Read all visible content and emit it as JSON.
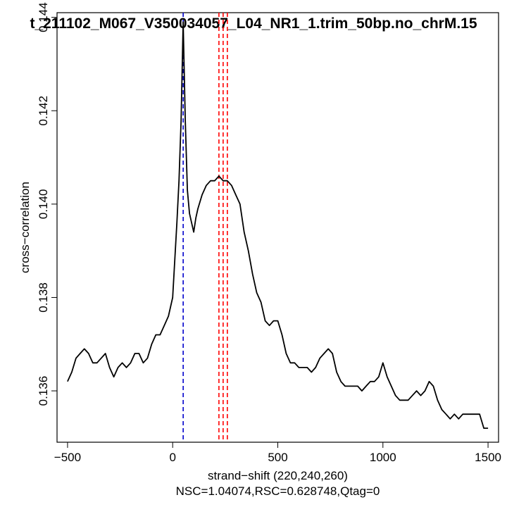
{
  "chart_data": {
    "type": "line",
    "title": "t_211102_M067_V350034057_L04_NR1_1.trim_50bp.no_chrM.15",
    "xlabel": "strand−shift (220,240,260)",
    "subtitle": "NSC=1.04074,RSC=0.628748,Qtag=0",
    "ylabel": "cross−correlation",
    "xlim": [
      -550,
      1550
    ],
    "ylim": [
      0.1349,
      0.1441
    ],
    "xticks": [
      -500,
      0,
      500,
      1000,
      1500
    ],
    "xtick_labels": [
      "−500",
      "0",
      "500",
      "1000",
      "1500"
    ],
    "yticks": [
      0.136,
      0.138,
      0.14,
      0.142,
      0.144
    ],
    "ytick_labels": [
      "0.136",
      "0.138",
      "0.140",
      "0.142",
      "0.144"
    ],
    "grid": false,
    "series": [
      {
        "color": "#000000",
        "x": [
          -500,
          -480,
          -460,
          -440,
          -420,
          -400,
          -380,
          -360,
          -340,
          -320,
          -300,
          -280,
          -260,
          -240,
          -220,
          -200,
          -180,
          -160,
          -140,
          -120,
          -100,
          -80,
          -60,
          -40,
          -20,
          0,
          10,
          20,
          30,
          40,
          50,
          60,
          70,
          80,
          90,
          100,
          110,
          120,
          140,
          160,
          180,
          200,
          220,
          240,
          260,
          280,
          300,
          320,
          340,
          360,
          380,
          400,
          420,
          440,
          460,
          480,
          500,
          520,
          540,
          560,
          580,
          600,
          620,
          640,
          660,
          680,
          700,
          720,
          740,
          760,
          780,
          800,
          820,
          840,
          860,
          880,
          900,
          920,
          940,
          960,
          980,
          1000,
          1020,
          1040,
          1060,
          1080,
          1100,
          1120,
          1140,
          1160,
          1180,
          1200,
          1220,
          1240,
          1260,
          1280,
          1300,
          1320,
          1340,
          1360,
          1380,
          1400,
          1420,
          1440,
          1460,
          1480,
          1500
        ],
        "y": [
          0.1362,
          0.1364,
          0.1367,
          0.1368,
          0.1369,
          0.1368,
          0.1366,
          0.1366,
          0.1367,
          0.1368,
          0.1365,
          0.1363,
          0.1365,
          0.1366,
          0.1365,
          0.1366,
          0.1368,
          0.1368,
          0.1366,
          0.1367,
          0.137,
          0.1372,
          0.1372,
          0.1374,
          0.1376,
          0.138,
          0.1388,
          0.1396,
          0.1405,
          0.1418,
          0.1439,
          0.1418,
          0.1403,
          0.1398,
          0.1396,
          0.1394,
          0.1397,
          0.1399,
          0.1402,
          0.1404,
          0.1405,
          0.1405,
          0.1406,
          0.1405,
          0.1405,
          0.1404,
          0.1402,
          0.14,
          0.1394,
          0.139,
          0.1385,
          0.1381,
          0.1379,
          0.1375,
          0.1374,
          0.1375,
          0.1375,
          0.1372,
          0.1368,
          0.1366,
          0.1366,
          0.1365,
          0.1365,
          0.1365,
          0.1364,
          0.1365,
          0.1367,
          0.1368,
          0.1369,
          0.1368,
          0.1364,
          0.1362,
          0.1361,
          0.1361,
          0.1361,
          0.1361,
          0.136,
          0.1361,
          0.1362,
          0.1362,
          0.1363,
          0.1366,
          0.1363,
          0.1361,
          0.1359,
          0.1358,
          0.1358,
          0.1358,
          0.1359,
          0.136,
          0.1359,
          0.136,
          0.1362,
          0.1361,
          0.1358,
          0.1356,
          0.1355,
          0.1354,
          0.1355,
          0.1354,
          0.1355,
          0.1355,
          0.1355,
          0.1355,
          0.1355,
          0.1352,
          0.1352
        ]
      }
    ],
    "vlines": [
      {
        "x": 50,
        "color": "#0000cc",
        "style": "dashed"
      },
      {
        "x": 220,
        "color": "#ff0000",
        "style": "dashed"
      },
      {
        "x": 240,
        "color": "#ff0000",
        "style": "dashed"
      },
      {
        "x": 260,
        "color": "#ff0000",
        "style": "dashed"
      }
    ]
  }
}
